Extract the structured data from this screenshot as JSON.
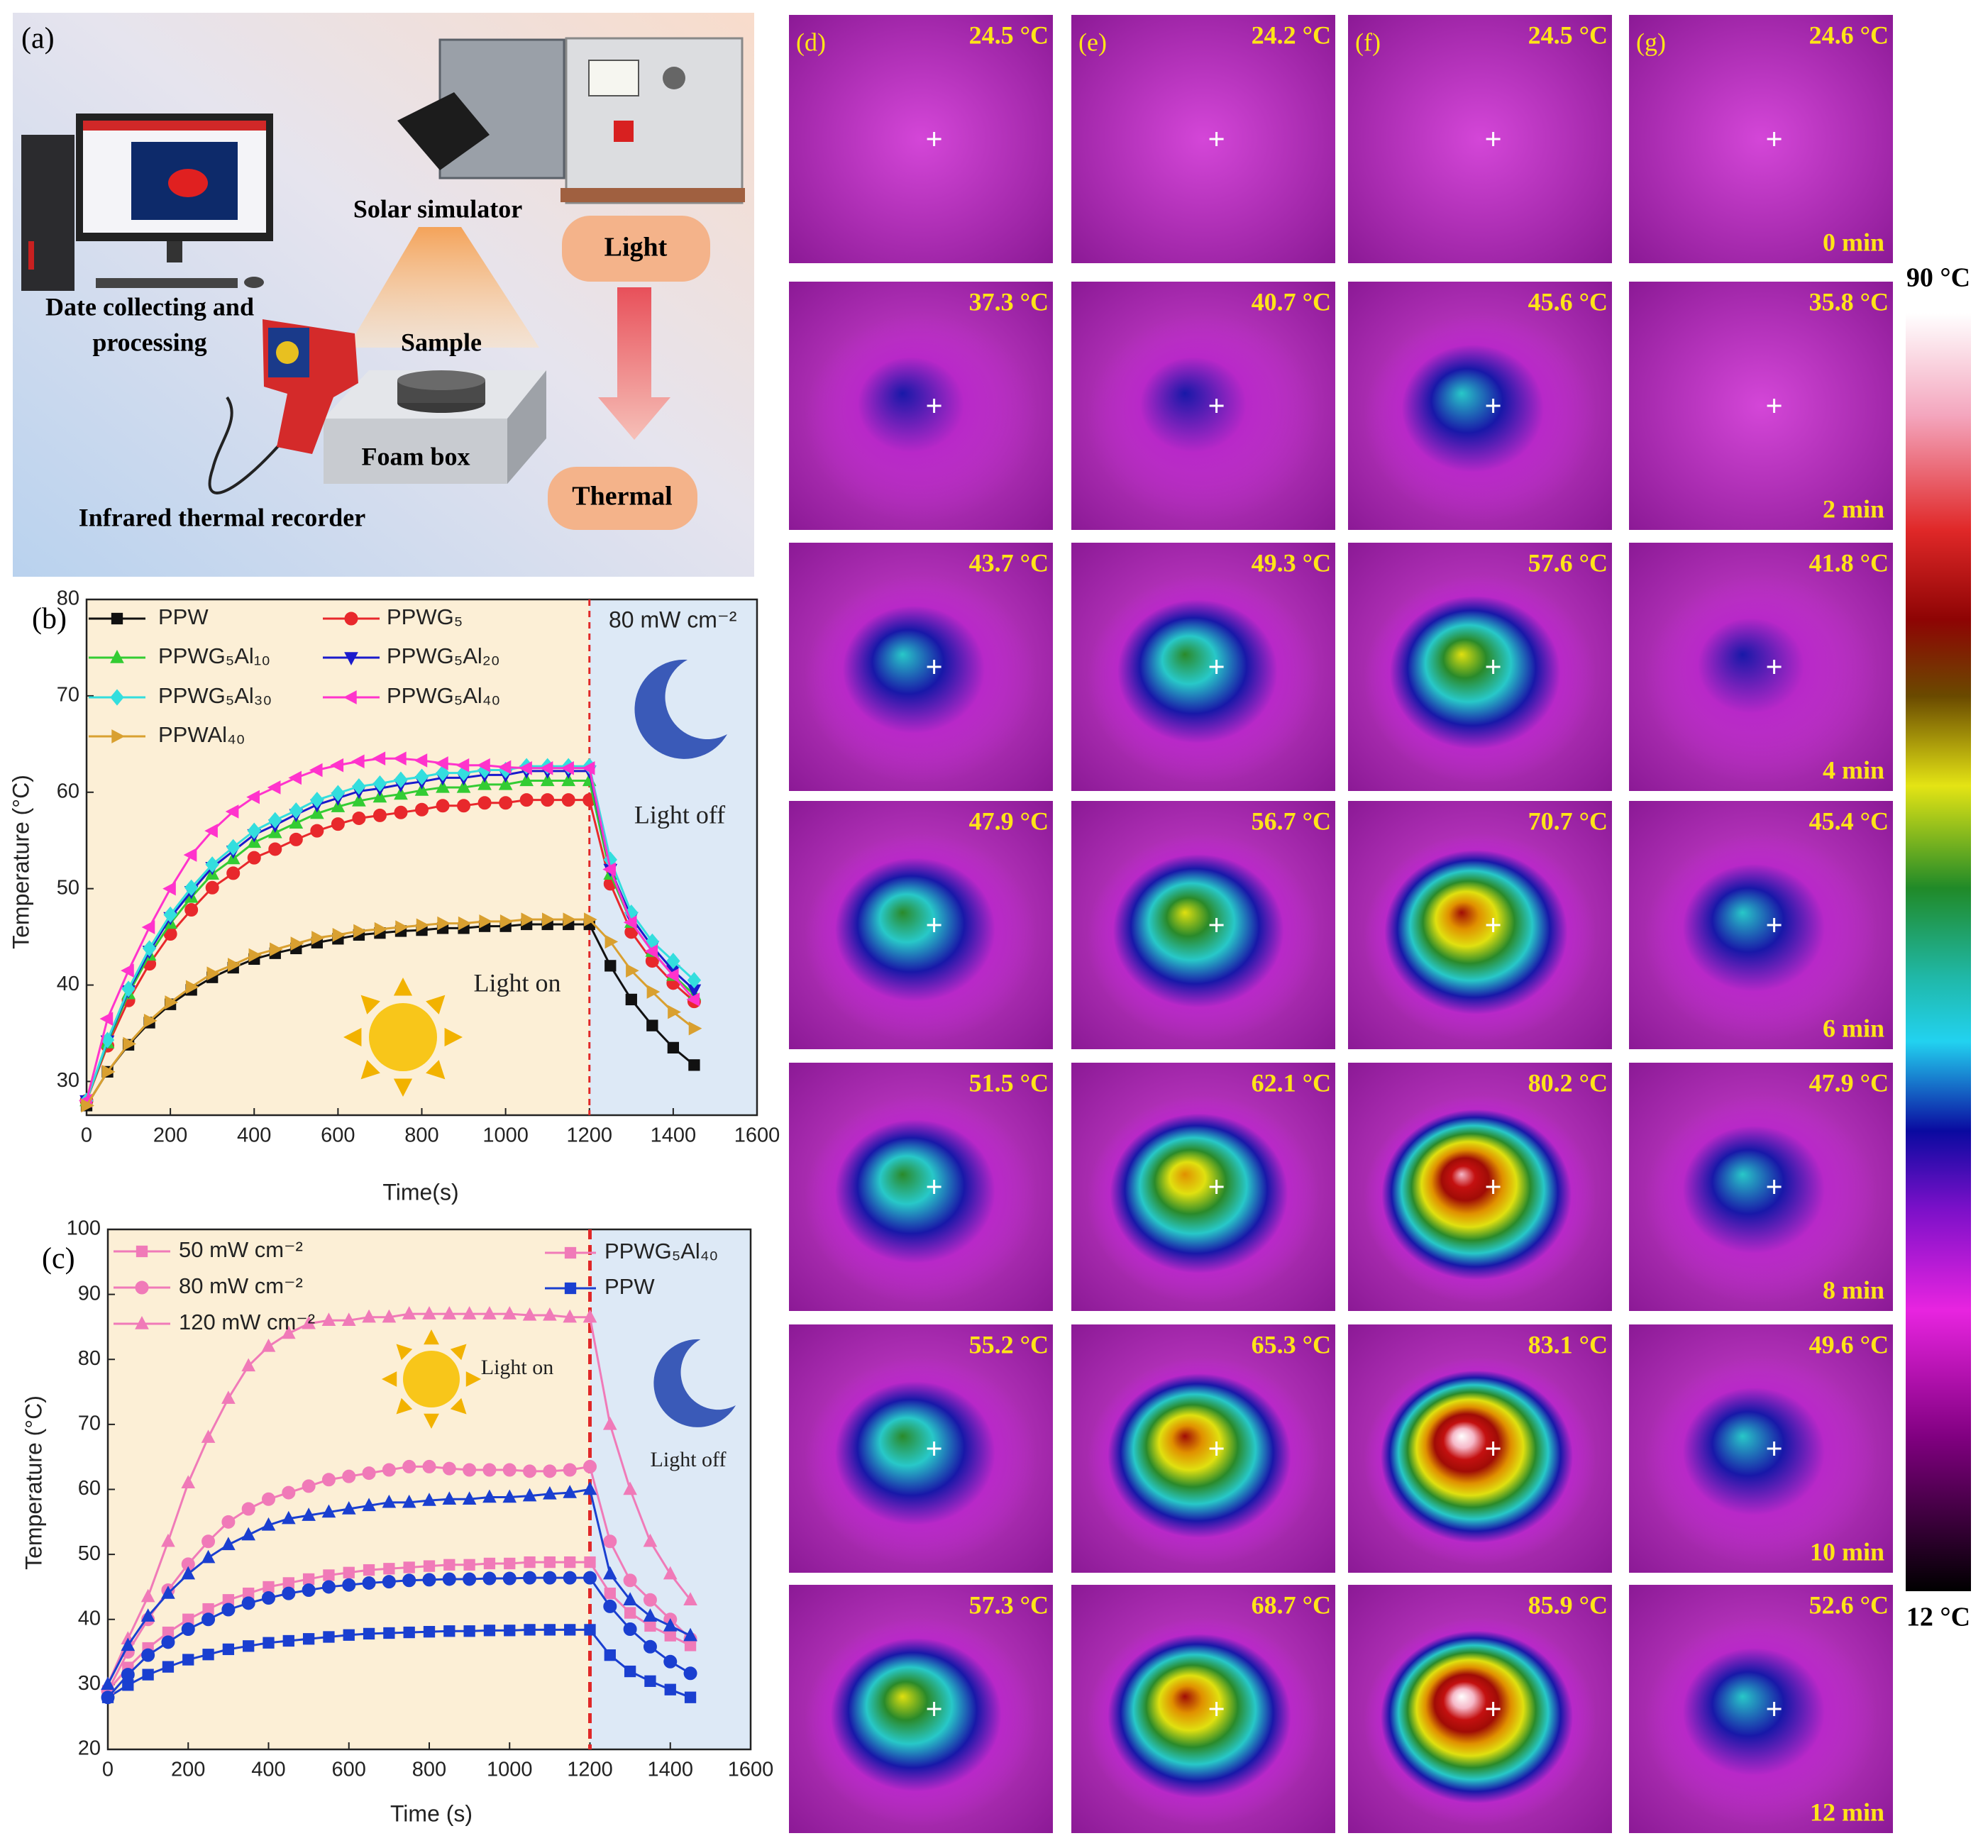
{
  "diagram": {
    "label": "(a)",
    "computer_line1": "Date collecting and",
    "computer_line2": "processing",
    "solar": "Solar simulator",
    "sample": "Sample",
    "foam": "Foam box",
    "recorder": "Infrared thermal recorder",
    "light": "Light",
    "thermal": "Thermal"
  },
  "chart_data": [
    {
      "type": "line",
      "label": "(b)",
      "xlabel": "Time(s)",
      "ylabel": "Temperature (°C)",
      "xlim": [
        0,
        1600
      ],
      "xticks": [
        0,
        200,
        400,
        600,
        800,
        1000,
        1200,
        1400,
        1600
      ],
      "ylim": [
        26.5,
        80
      ],
      "yticks": [
        30,
        40,
        50,
        60,
        70,
        80
      ],
      "divider": 1200,
      "region_colors": [
        "#fcefd6",
        "#dde9f6"
      ],
      "annotations": {
        "intensity": "80 mW cm⁻²",
        "light_off": "Light off",
        "light_on": "Light on"
      },
      "x": [
        0,
        50,
        100,
        150,
        200,
        250,
        300,
        350,
        400,
        450,
        500,
        550,
        600,
        650,
        700,
        750,
        800,
        850,
        900,
        950,
        1000,
        1050,
        1100,
        1150,
        1200,
        1250,
        1300,
        1350,
        1400,
        1450
      ],
      "series": [
        {
          "name": "PPW",
          "color": "#111111",
          "marker": "square",
          "values": [
            27.5,
            31.0,
            33.8,
            36.1,
            38.0,
            39.5,
            40.8,
            41.8,
            42.7,
            43.3,
            43.8,
            44.4,
            44.8,
            45.2,
            45.4,
            45.6,
            45.7,
            45.9,
            45.9,
            46.1,
            46.1,
            46.3,
            46.3,
            46.3,
            46.3,
            42.0,
            38.5,
            35.8,
            33.5,
            31.7
          ]
        },
        {
          "name": "PPWG₅",
          "color": "#e8282c",
          "marker": "circle",
          "values": [
            28,
            33.7,
            38.4,
            42.2,
            45.3,
            47.8,
            50.1,
            51.6,
            53.2,
            54.1,
            55.1,
            56.0,
            56.7,
            57.3,
            57.6,
            57.9,
            58.2,
            58.6,
            58.6,
            58.9,
            58.9,
            59.2,
            59.2,
            59.2,
            59.2,
            50.5,
            45.5,
            42.5,
            40.2,
            38.3
          ]
        },
        {
          "name": "PPWG₅Al₁₀",
          "color": "#33cc33",
          "marker": "triangle-up",
          "values": [
            28,
            34.0,
            39.1,
            43.1,
            46.4,
            49.1,
            51.5,
            53.1,
            54.8,
            55.8,
            56.8,
            57.8,
            58.5,
            59.1,
            59.5,
            59.8,
            60.2,
            60.5,
            60.5,
            60.8,
            60.8,
            61.2,
            61.2,
            61.2,
            61.2,
            51.5,
            46.5,
            43.5,
            41.0,
            39.0
          ]
        },
        {
          "name": "PPWG₅Al₂₀",
          "color": "#1a1acc",
          "marker": "triangle-down",
          "values": [
            28,
            34.2,
            39.4,
            43.5,
            47.0,
            49.7,
            52.2,
            53.9,
            55.6,
            56.6,
            57.7,
            58.7,
            59.4,
            60.1,
            60.4,
            60.8,
            61.1,
            61.5,
            61.5,
            61.8,
            61.8,
            62.2,
            62.2,
            62.2,
            62.2,
            52,
            47,
            44,
            41.5,
            39.5
          ]
        },
        {
          "name": "PPWG₅Al₃₀",
          "color": "#33dede",
          "marker": "diamond",
          "values": [
            28,
            34.3,
            39.6,
            43.8,
            47.3,
            50.1,
            52.5,
            54.3,
            56.0,
            57.1,
            58.1,
            59.2,
            59.9,
            60.6,
            60.9,
            61.3,
            61.6,
            62.0,
            62.0,
            62.3,
            62.3,
            62.7,
            62.7,
            62.7,
            62.7,
            53,
            47.5,
            44.5,
            42.5,
            40.5
          ]
        },
        {
          "name": "PPWG₅Al₄₀",
          "color": "#ff33cc",
          "marker": "triangle-left",
          "values": [
            28,
            36.5,
            41.5,
            46.0,
            50.0,
            53.5,
            56.0,
            58.0,
            59.5,
            60.5,
            61.5,
            62.3,
            62.8,
            63.2,
            63.5,
            63.5,
            63.3,
            63.0,
            62.8,
            62.8,
            62.6,
            62.5,
            62.5,
            62.5,
            62.5,
            52,
            46.5,
            43.5,
            41,
            38.5
          ]
        },
        {
          "name": "PPWAl₄₀",
          "color": "#d9a030",
          "marker": "triangle-right",
          "values": [
            27.5,
            31.0,
            33.9,
            36.3,
            38.2,
            39.8,
            41.2,
            42.1,
            43.1,
            43.7,
            44.3,
            44.9,
            45.2,
            45.6,
            45.8,
            46.0,
            46.2,
            46.4,
            46.4,
            46.6,
            46.6,
            46.8,
            46.8,
            46.8,
            46.8,
            44.5,
            41.5,
            39.3,
            37.2,
            35.5
          ]
        }
      ]
    },
    {
      "type": "line",
      "label": "(c)",
      "xlabel": "Time (s)",
      "ylabel": "Temperature (°C)",
      "xlim": [
        0,
        1600
      ],
      "xticks": [
        0,
        200,
        400,
        600,
        800,
        1000,
        1200,
        1400,
        1600
      ],
      "ylim": [
        20,
        100
      ],
      "yticks": [
        20,
        30,
        40,
        50,
        60,
        70,
        80,
        90,
        100
      ],
      "divider": 1200,
      "region_colors": [
        "#fcefd6",
        "#dde9f6"
      ],
      "annotations": {
        "light_on": "Light on",
        "light_off": "Light off"
      },
      "legend_markers": [
        {
          "name": "50 mW cm⁻²",
          "marker": "square"
        },
        {
          "name": "80 mW cm⁻²",
          "marker": "circle"
        },
        {
          "name": "120 mW cm⁻²",
          "marker": "triangle-up"
        }
      ],
      "legend_colors": [
        {
          "name": "PPWG₅Al₄₀",
          "color": "#f07ab8"
        },
        {
          "name": "PPW",
          "color": "#1a3fd0"
        }
      ],
      "x": [
        0,
        50,
        100,
        150,
        200,
        250,
        300,
        350,
        400,
        450,
        500,
        550,
        600,
        650,
        700,
        750,
        800,
        850,
        900,
        950,
        1000,
        1050,
        1100,
        1150,
        1200,
        1250,
        1300,
        1350,
        1400,
        1450
      ],
      "series": [
        {
          "color": "#f07ab8",
          "marker": "square",
          "values": [
            29,
            32.6,
            35.6,
            38.0,
            40.0,
            41.6,
            43.0,
            44.0,
            45.0,
            45.6,
            46.2,
            46.8,
            47.2,
            47.6,
            47.8,
            48.0,
            48.2,
            48.4,
            48.4,
            48.6,
            48.6,
            48.8,
            48.8,
            48.8,
            48.8,
            44,
            41,
            39,
            37.5,
            36
          ]
        },
        {
          "color": "#1a3fd0",
          "marker": "square",
          "values": [
            28,
            29.9,
            31.5,
            32.7,
            33.8,
            34.6,
            35.4,
            35.9,
            36.4,
            36.7,
            37.0,
            37.3,
            37.6,
            37.8,
            37.9,
            38.0,
            38.1,
            38.2,
            38.2,
            38.3,
            38.3,
            38.4,
            38.4,
            38.4,
            38.4,
            34.5,
            32,
            30.5,
            29.2,
            28
          ]
        },
        {
          "color": "#f07ab8",
          "marker": "circle",
          "values": [
            29,
            35,
            40,
            44.5,
            48.5,
            52,
            55,
            57,
            58.5,
            59.5,
            60.5,
            61.5,
            62,
            62.5,
            63,
            63.5,
            63.5,
            63.2,
            63,
            63,
            63,
            62.8,
            62.8,
            63,
            63.5,
            52,
            46,
            43,
            40,
            37
          ]
        },
        {
          "color": "#1a3fd0",
          "marker": "circle",
          "values": [
            28,
            31.5,
            34.5,
            36.5,
            38.5,
            40,
            41.5,
            42.5,
            43.3,
            44,
            44.5,
            45,
            45.3,
            45.6,
            45.8,
            46,
            46.1,
            46.2,
            46.2,
            46.3,
            46.3,
            46.4,
            46.4,
            46.4,
            46.4,
            42,
            38.5,
            35.8,
            33.5,
            31.7
          ]
        },
        {
          "color": "#f07ab8",
          "marker": "triangle-up",
          "values": [
            30,
            37,
            43.5,
            52,
            61,
            68,
            74,
            79,
            82,
            84,
            85.5,
            86,
            86,
            86.5,
            86.5,
            87,
            87,
            87,
            87,
            87,
            87,
            86.8,
            86.8,
            86.5,
            86.5,
            70,
            60,
            52,
            47,
            43
          ]
        },
        {
          "color": "#1a3fd0",
          "marker": "triangle-up",
          "values": [
            30,
            36,
            40.5,
            44,
            47,
            49.5,
            51.5,
            53,
            54.5,
            55.5,
            56,
            56.5,
            57,
            57.5,
            58,
            58,
            58.3,
            58.5,
            58.5,
            58.8,
            58.8,
            59,
            59.3,
            59.5,
            60,
            47,
            43,
            40.5,
            39,
            37.5
          ]
        }
      ]
    }
  ],
  "thermal_images": {
    "columns": [
      "(d)",
      "(e)",
      "(f)",
      "(g)"
    ],
    "times": [
      "0 min",
      "2 min",
      "4 min",
      "6 min",
      "8 min",
      "10 min",
      "12 min"
    ],
    "temperatures": [
      [
        "24.5 °C",
        "24.2 °C",
        "24.5 °C",
        "24.6 °C"
      ],
      [
        "37.3 °C",
        "40.7 °C",
        "45.6 °C",
        "35.8 °C"
      ],
      [
        "43.7 °C",
        "49.3 °C",
        "57.6 °C",
        "41.8 °C"
      ],
      [
        "47.9 °C",
        "56.7 °C",
        "70.7 °C",
        "45.4 °C"
      ],
      [
        "51.5 °C",
        "62.1 °C",
        "80.2 °C",
        "47.9 °C"
      ],
      [
        "55.2 °C",
        "65.3 °C",
        "83.1 °C",
        "49.6 °C"
      ],
      [
        "57.3 °C",
        "68.7 °C",
        "85.9 °C",
        "52.6 °C"
      ]
    ],
    "colorbar_max": "90 °C",
    "colorbar_min": "12 °C"
  }
}
